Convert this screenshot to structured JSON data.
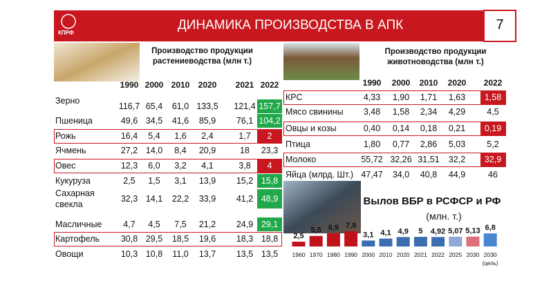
{
  "header": {
    "logo": "КПРФ",
    "title": "ДИНАМИКА ПРОИЗВОДСТВА В АПК",
    "page_number": "7"
  },
  "crops": {
    "title": "Производство продукции растениеводства (млн т.)",
    "columns": [
      "1990",
      "2000",
      "2010",
      "2020",
      "2021",
      "2022"
    ],
    "rows": [
      {
        "label": "Зерно",
        "values": [
          "116,7",
          "65,4",
          "61,0",
          "133,5",
          "121,4",
          "157,7"
        ],
        "highlight": "#21a84a"
      },
      {
        "label": "Пшеница",
        "values": [
          "49,6",
          "34,5",
          "41,6",
          "85,9",
          "76,1",
          "104,2"
        ],
        "highlight": "#21a84a"
      },
      {
        "label": "Рожь",
        "values": [
          "16,4",
          "5,4",
          "1,6",
          "2,4",
          "1,7",
          "2"
        ],
        "highlight": "#c8171e",
        "boxed": true
      },
      {
        "label": "Ячмень",
        "values": [
          "27,2",
          "14,0",
          "8,4",
          "20,9",
          "18",
          "23,3"
        ]
      },
      {
        "label": "Овес",
        "values": [
          "12,3",
          "6,0",
          "3,2",
          "4,1",
          "3,8",
          "4"
        ],
        "highlight": "#c8171e",
        "boxed": true
      },
      {
        "label": "Кукуруза",
        "values": [
          "2,5",
          "1,5",
          "3,1",
          "13,9",
          "15,2",
          "15,8"
        ],
        "highlight": "#21a84a"
      },
      {
        "label": "Сахарная свекла",
        "values": [
          "32,3",
          "14,1",
          "22,2",
          "33,9",
          "41,2",
          "48,9"
        ],
        "highlight": "#21a84a"
      },
      {
        "label": "Масличные",
        "values": [
          "4,7",
          "4,5",
          "7,5",
          "21,2",
          "24,9",
          "29,1"
        ],
        "highlight": "#21a84a"
      },
      {
        "label": "Картофель",
        "values": [
          "30,8",
          "29,5",
          "18,5",
          "19,6",
          "18,3",
          "18,8"
        ],
        "boxed": true
      },
      {
        "label": "Овощи",
        "values": [
          "10,3",
          "10,8",
          "11,0",
          "13,7",
          "13,5",
          "13,5"
        ]
      }
    ]
  },
  "livestock": {
    "title": "Производство продукции животноводства  (млн т.)",
    "columns": [
      "1990",
      "2000",
      "2010",
      "2020",
      "2022"
    ],
    "rows": [
      {
        "label": "КРС",
        "values": [
          "4,33",
          "1,90",
          "1,71",
          "1,63",
          "1,58"
        ],
        "highlight": "#c8171e",
        "boxed": true
      },
      {
        "label": "Мясо свинины",
        "values": [
          "3,48",
          "1,58",
          "2,34",
          "4,29",
          "4,5"
        ]
      },
      {
        "label": "Овцы и козы",
        "values": [
          "0,40",
          "0,14",
          "0,18",
          "0,21",
          "0,19"
        ],
        "highlight": "#c8171e",
        "boxed": true
      },
      {
        "label": "Птица",
        "values": [
          "1,80",
          "0,77",
          "2,86",
          "5,03",
          "5,2"
        ]
      },
      {
        "label": "Молоко",
        "values": [
          "55,72",
          "32,26",
          "31,51",
          "32,2",
          "32,9"
        ],
        "highlight": "#c8171e",
        "boxed": true
      },
      {
        "label": "Яйца (млрд. Шт.)",
        "values": [
          "47,47",
          "34,0",
          "40,8",
          "44,9",
          "46"
        ]
      }
    ]
  },
  "chart_data": {
    "type": "bar",
    "title": "Вылов ВБР в РСФСР и РФ",
    "subtitle": "(млн. т.)",
    "categories": [
      "1960",
      "1970",
      "1980",
      "1990",
      "2000",
      "2010",
      "2020",
      "2021",
      "2022",
      "2025",
      "2030",
      "2030"
    ],
    "category_note": "(цель)",
    "values": [
      2.5,
      5.5,
      6.9,
      7.9,
      3.1,
      4.1,
      4.9,
      5,
      4.92,
      5.07,
      5.13,
      6.8
    ],
    "value_labels": [
      "2,5",
      "5,5",
      "6,9",
      "7,9",
      "3,1",
      "4,1",
      "4,9",
      "5",
      "4,92",
      "5,07",
      "5,13",
      "6,8"
    ],
    "colors": [
      "#c0121a",
      "#c0121a",
      "#c0121a",
      "#c0121a",
      "#3c6db0",
      "#3c6db0",
      "#3c6db0",
      "#3c6db0",
      "#3c6db0",
      "#8fa8d4",
      "#d9707a",
      "#4a86cf"
    ]
  }
}
